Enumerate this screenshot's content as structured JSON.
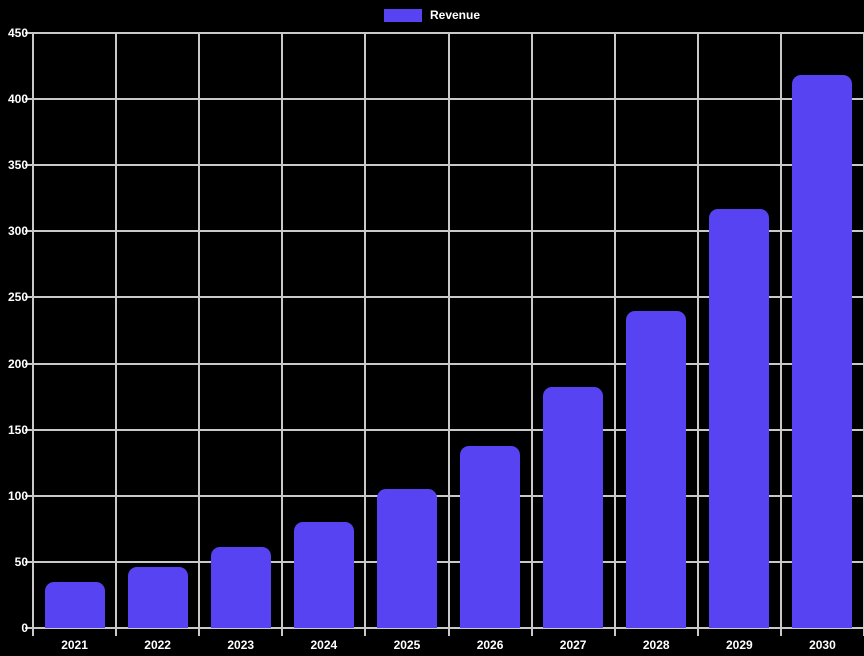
{
  "chart_data": {
    "type": "bar",
    "title": "",
    "categories": [
      "2021",
      "2022",
      "2023",
      "2024",
      "2025",
      "2026",
      "2027",
      "2028",
      "2029",
      "2030"
    ],
    "series": [
      {
        "name": "Revenue",
        "color": "#5843f3",
        "values": [
          35,
          46,
          61,
          80,
          105,
          138,
          182,
          240,
          317,
          418
        ]
      }
    ],
    "xlabel": "",
    "ylabel": "",
    "ylim": [
      0,
      450
    ],
    "yticks": [
      0,
      50,
      100,
      150,
      200,
      250,
      300,
      350,
      400,
      450
    ],
    "grid": true,
    "legend_position": "top-center",
    "background_color": "#000000",
    "grid_color": "#c9c9c9",
    "text_color": "#ffffff"
  }
}
